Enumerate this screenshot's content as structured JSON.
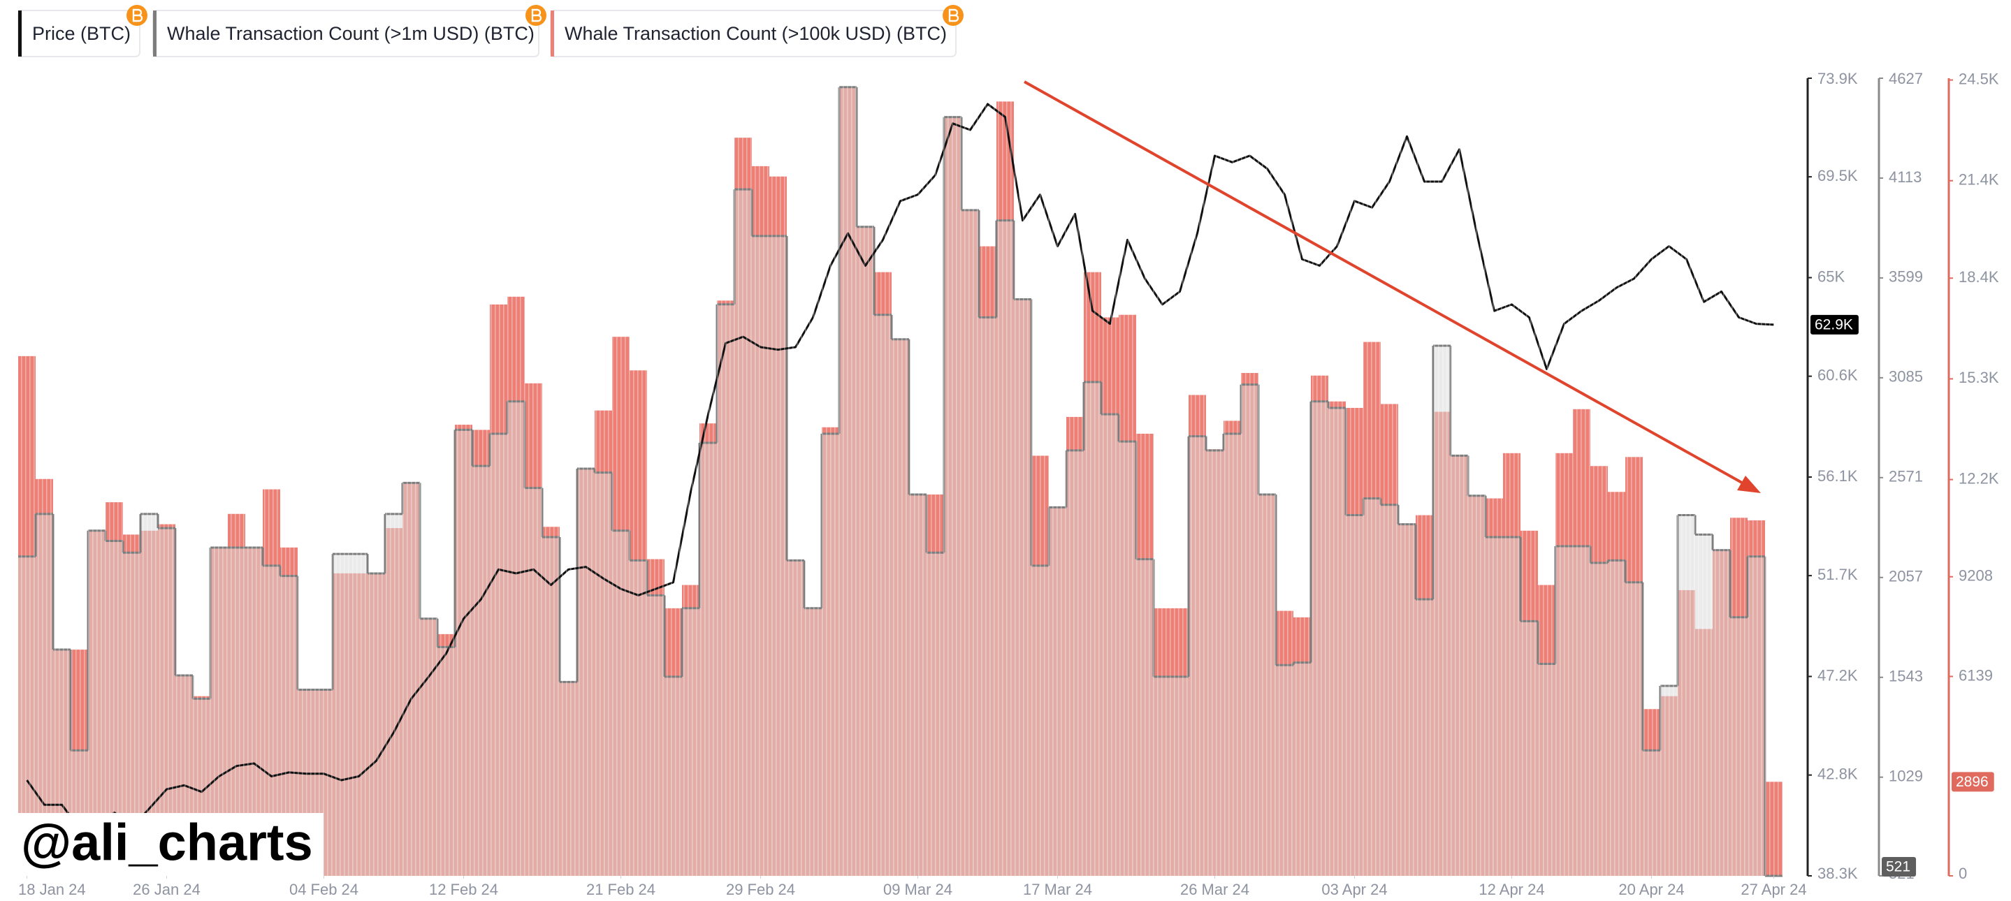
{
  "chart_data": {
    "type": "combo",
    "watermark": "@ali_charts",
    "x": [
      "2024-01-18",
      "2024-01-19",
      "2024-01-20",
      "2024-01-21",
      "2024-01-22",
      "2024-01-23",
      "2024-01-24",
      "2024-01-25",
      "2024-01-26",
      "2024-01-27",
      "2024-01-28",
      "2024-01-29",
      "2024-01-30",
      "2024-01-31",
      "2024-02-01",
      "2024-02-02",
      "2024-02-03",
      "2024-02-04",
      "2024-02-05",
      "2024-02-06",
      "2024-02-07",
      "2024-02-08",
      "2024-02-09",
      "2024-02-10",
      "2024-02-11",
      "2024-02-12",
      "2024-02-13",
      "2024-02-14",
      "2024-02-15",
      "2024-02-16",
      "2024-02-17",
      "2024-02-18",
      "2024-02-19",
      "2024-02-20",
      "2024-02-21",
      "2024-02-22",
      "2024-02-23",
      "2024-02-24",
      "2024-02-25",
      "2024-02-26",
      "2024-02-27",
      "2024-02-28",
      "2024-02-29",
      "2024-03-01",
      "2024-03-02",
      "2024-03-03",
      "2024-03-04",
      "2024-03-05",
      "2024-03-06",
      "2024-03-07",
      "2024-03-08",
      "2024-03-09",
      "2024-03-10",
      "2024-03-11",
      "2024-03-12",
      "2024-03-13",
      "2024-03-14",
      "2024-03-15",
      "2024-03-16",
      "2024-03-17",
      "2024-03-18",
      "2024-03-19",
      "2024-03-20",
      "2024-03-21",
      "2024-03-22",
      "2024-03-23",
      "2024-03-24",
      "2024-03-25",
      "2024-03-26",
      "2024-03-27",
      "2024-03-28",
      "2024-03-29",
      "2024-03-30",
      "2024-03-31",
      "2024-04-01",
      "2024-04-02",
      "2024-04-03",
      "2024-04-04",
      "2024-04-05",
      "2024-04-06",
      "2024-04-07",
      "2024-04-08",
      "2024-04-09",
      "2024-04-10",
      "2024-04-11",
      "2024-04-12",
      "2024-04-13",
      "2024-04-14",
      "2024-04-15",
      "2024-04-16",
      "2024-04-17",
      "2024-04-18",
      "2024-04-19",
      "2024-04-20",
      "2024-04-21",
      "2024-04-22",
      "2024-04-23",
      "2024-04-24",
      "2024-04-25",
      "2024-04-26",
      "2024-04-27"
    ],
    "xticks": [
      {
        "value": "2024-01-18",
        "label": "18 Jan 24"
      },
      {
        "value": "2024-01-26",
        "label": "26 Jan 24"
      },
      {
        "value": "2024-02-04",
        "label": "04 Feb 24"
      },
      {
        "value": "2024-02-12",
        "label": "12 Feb 24"
      },
      {
        "value": "2024-02-21",
        "label": "21 Feb 24"
      },
      {
        "value": "2024-02-29",
        "label": "29 Feb 24"
      },
      {
        "value": "2024-03-09",
        "label": "09 Mar 24"
      },
      {
        "value": "2024-03-17",
        "label": "17 Mar 24"
      },
      {
        "value": "2024-03-26",
        "label": "26 Mar 24"
      },
      {
        "value": "2024-04-03",
        "label": "03 Apr 24"
      },
      {
        "value": "2024-04-12",
        "label": "12 Apr 24"
      },
      {
        "value": "2024-04-20",
        "label": "20 Apr 24"
      },
      {
        "value": "2024-04-27",
        "label": "27 Apr 24"
      }
    ],
    "ylim": [
      38300,
      73900
    ],
    "yticks": [
      {
        "value": 38300,
        "label": "38.3K"
      },
      {
        "value": 42800,
        "label": "42.8K"
      },
      {
        "value": 47200,
        "label": "47.2K"
      },
      {
        "value": 51700,
        "label": "51.7K"
      },
      {
        "value": 56100,
        "label": "56.1K"
      },
      {
        "value": 60600,
        "label": "60.6K"
      },
      {
        "value": 65000,
        "label": "65K"
      },
      {
        "value": 69500,
        "label": "69.5K"
      },
      {
        "value": 73900,
        "label": "73.9K"
      }
    ],
    "y2lim": [
      521,
      4627
    ],
    "y2ticks": [
      521,
      1029,
      1543,
      2057,
      2571,
      3085,
      3599,
      4113,
      4627
    ],
    "y3lim": [
      0,
      24555
    ],
    "y3ticks": [
      0,
      6139,
      9208,
      {
        "value": 12200,
        "label": "12.2K"
      },
      {
        "value": 15300,
        "label": "15.3K"
      },
      {
        "value": 18400,
        "label": "18.4K"
      },
      {
        "value": 21400,
        "label": "21.4K"
      },
      {
        "value": 24500,
        "label": "24.5K"
      }
    ],
    "series": [
      {
        "name": "Price (BTC)",
        "color": "#111111",
        "axis": "y",
        "kind": "line",
        "values": [
          42570,
          41474,
          41474,
          40435,
          39858,
          41127,
          40435,
          41300,
          42166,
          42339,
          42050,
          42743,
          43205,
          43320,
          42743,
          42916,
          42858,
          42858,
          42570,
          42743,
          43435,
          44705,
          46205,
          47186,
          48224,
          49782,
          50648,
          51975,
          51802,
          51975,
          51283,
          51975,
          52090,
          51571,
          51109,
          50821,
          51109,
          51398,
          55437,
          58899,
          62072,
          62361,
          61899,
          61784,
          61899,
          63226,
          65534,
          66977,
          65534,
          66688,
          68419,
          68708,
          69573,
          71881,
          71593,
          72747,
          72170,
          67554,
          68708,
          66400,
          67842,
          63515,
          62938,
          66688,
          64957,
          63803,
          64380,
          66977,
          70439,
          70150,
          70439,
          69862,
          68708,
          65823,
          65534,
          66400,
          68419,
          68131,
          69285,
          71304,
          69285,
          69285,
          70727,
          66977,
          63515,
          63803,
          63226,
          60918,
          62938,
          63515,
          63977,
          64554,
          64957,
          65823,
          66400,
          65823,
          63919,
          64380,
          63226,
          62938,
          62900
        ],
        "value_labels": [
          null,
          null,
          null,
          null,
          null,
          null,
          null,
          null,
          null,
          null,
          null,
          null,
          null,
          null,
          null,
          null,
          null,
          null,
          null,
          null,
          null,
          null,
          null,
          null,
          null,
          null,
          null,
          null,
          null,
          null,
          null,
          null,
          null,
          null,
          null,
          null,
          null,
          null,
          null,
          null,
          null,
          null,
          null,
          null,
          null,
          null,
          null,
          null,
          null,
          null,
          null,
          null,
          null,
          null,
          null,
          null,
          null,
          null,
          null,
          null,
          null,
          null,
          null,
          null,
          null,
          null,
          null,
          null,
          null,
          null,
          null,
          null,
          null,
          null,
          null,
          null,
          null,
          null,
          null,
          null,
          null,
          null,
          null,
          null,
          null,
          null,
          null,
          null,
          null,
          null,
          null,
          null,
          null,
          null,
          null,
          null,
          null,
          null,
          null,
          null,
          "62.9K"
        ]
      },
      {
        "name": "Whale Transaction Count (>1m USD) (BTC)",
        "color": "#7d7d7d",
        "axis": "y2",
        "kind": "step-area",
        "values": [
          2165,
          2384,
          1686,
          1167,
          2298,
          2245,
          2185,
          2384,
          2311,
          1553,
          1433,
          2211,
          2211,
          2211,
          2118,
          2065,
          1479,
          1479,
          2178,
          2178,
          2078,
          2384,
          2544,
          1845,
          1699,
          2817,
          2631,
          2797,
          2963,
          2518,
          2265,
          1519,
          2617,
          2597,
          2298,
          2145,
          1965,
          1546,
          1899,
          2750,
          3463,
          4055,
          3815,
          3815,
          2145,
          1899,
          2797,
          4581,
          3862,
          3409,
          3283,
          2484,
          2185,
          4427,
          3948,
          3396,
          3895,
          3489,
          2118,
          2418,
          2711,
          3063,
          2897,
          2757,
          2151,
          1546,
          1546,
          2784,
          2711,
          2797,
          3050,
          2484,
          1606,
          1619,
          2963,
          2930,
          2378,
          2464,
          2431,
          2331,
          1945,
          3250,
          2684,
          2478,
          2265,
          2265,
          1832,
          1612,
          2218,
          2218,
          2132,
          2145,
          2032,
          1167,
          1499,
          2378,
          2278,
          2198,
          1852,
          2165,
          521
        ]
      },
      {
        "name": "Whale Transaction Count (>100k USD) (BTC)",
        "color": "#ec8077",
        "axis": "y3",
        "kind": "bar",
        "values": [
          16000,
          12218,
          6965,
          6965,
          10626,
          11502,
          10507,
          10626,
          10825,
          6169,
          5532,
          10109,
          11143,
          10109,
          11899,
          10109,
          5731,
          5731,
          9313,
          9313,
          9313,
          10706,
          12098,
          7920,
          7442,
          13889,
          13730,
          17590,
          17829,
          15163,
          10745,
          5970,
          12536,
          14327,
          16595,
          15561,
          9750,
          8238,
          8954,
          13929,
          17710,
          22724,
          21848,
          21530,
          9710,
          8238,
          13810,
          24276,
          19978,
          18585,
          16516,
          11740,
          11740,
          23361,
          20495,
          19381,
          23838,
          17749,
          12934,
          11342,
          14128,
          18585,
          17192,
          17272,
          13611,
          8238,
          8238,
          14804,
          13133,
          14009,
          15481,
          11740,
          8158,
          7959,
          15401,
          14605,
          14406,
          16436,
          14526,
          10825,
          11103,
          14287,
          12934,
          11700,
          11621,
          13013,
          10626,
          8954,
          13013,
          14367,
          12616,
          11820,
          12894,
          5134,
          5532,
          8795,
          7601,
          10029,
          11024,
          10944,
          2896
        ]
      }
    ]
  }
}
